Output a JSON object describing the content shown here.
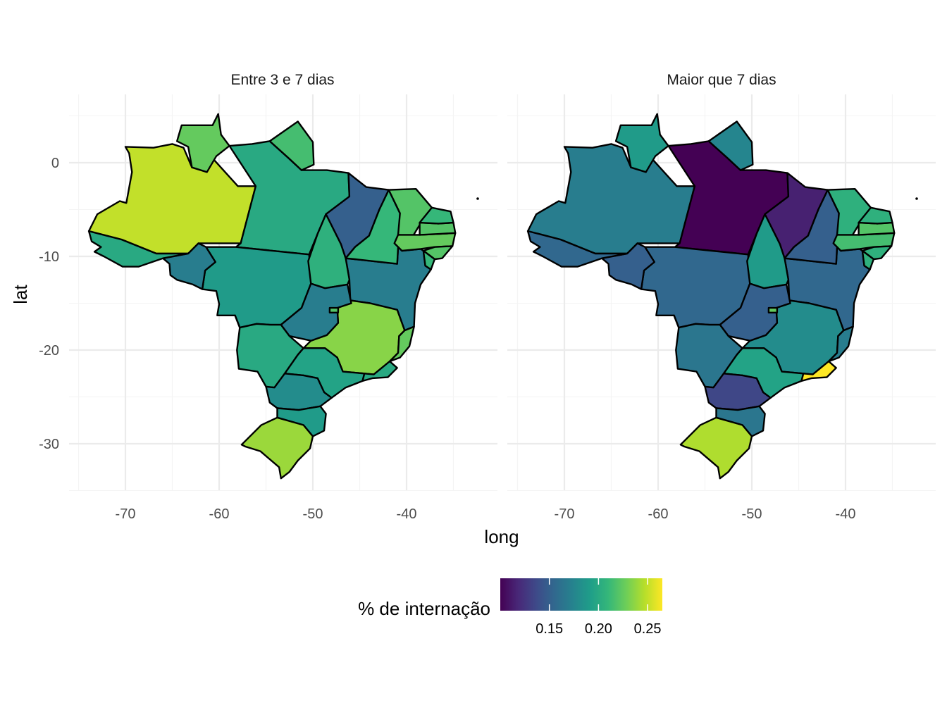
{
  "chart_data": {
    "type": "choropleth",
    "x_axis": {
      "title": "long",
      "ticks": [
        "-70",
        "-60",
        "-50",
        "-40"
      ],
      "tick_values": [
        -70,
        -60,
        -50,
        -40
      ],
      "range": [
        -75,
        -30
      ]
    },
    "y_axis": {
      "title": "lat",
      "ticks": [
        "0",
        "-10",
        "-20",
        "-30"
      ],
      "tick_values": [
        0,
        -10,
        -20,
        -30
      ],
      "range": [
        -35,
        6
      ]
    },
    "legend": {
      "title": "% de internação",
      "ticks": [
        "0.15",
        "0.20",
        "0.25"
      ],
      "tick_values": [
        0.15,
        0.2,
        0.25
      ],
      "range": [
        0.1,
        0.265
      ],
      "palette": [
        "#440154",
        "#482878",
        "#3e4a89",
        "#31688e",
        "#26828e",
        "#1f9e89",
        "#35b779",
        "#6ece58",
        "#b5de2b",
        "#fde725"
      ],
      "placement": "bottom"
    },
    "panels": [
      {
        "title": "Entre 3 e 7 dias",
        "values": {
          "AM": 0.25,
          "RR": 0.225,
          "AP": 0.215,
          "PA": 0.2,
          "AC": 0.2,
          "RO": 0.17,
          "MT": 0.19,
          "TO": 0.205,
          "MA": 0.15,
          "PI": 0.21,
          "CE": 0.22,
          "RN": 0.21,
          "PB": 0.22,
          "PE": 0.225,
          "AL": 0.22,
          "SE": 0.21,
          "BA": 0.17,
          "GO": 0.17,
          "DF": 0.22,
          "MG": 0.235,
          "ES": 0.225,
          "RJ": 0.2,
          "SP": 0.195,
          "MS": 0.2,
          "PR": 0.18,
          "SC": 0.19,
          "RS": 0.24
        }
      },
      {
        "title": "Maior que 7 dias",
        "values": {
          "AM": 0.17,
          "RR": 0.19,
          "AP": 0.175,
          "PA": 0.1,
          "AC": 0.155,
          "RO": 0.15,
          "MT": 0.155,
          "TO": 0.19,
          "MA": 0.115,
          "PI": 0.15,
          "CE": 0.205,
          "RN": 0.205,
          "PB": 0.22,
          "PE": 0.215,
          "AL": 0.205,
          "SE": 0.205,
          "BA": 0.155,
          "GO": 0.15,
          "DF": 0.225,
          "MG": 0.18,
          "ES": 0.17,
          "RJ": 0.265,
          "SP": 0.195,
          "MS": 0.165,
          "PR": 0.135,
          "SC": 0.165,
          "RS": 0.245
        }
      }
    ]
  }
}
